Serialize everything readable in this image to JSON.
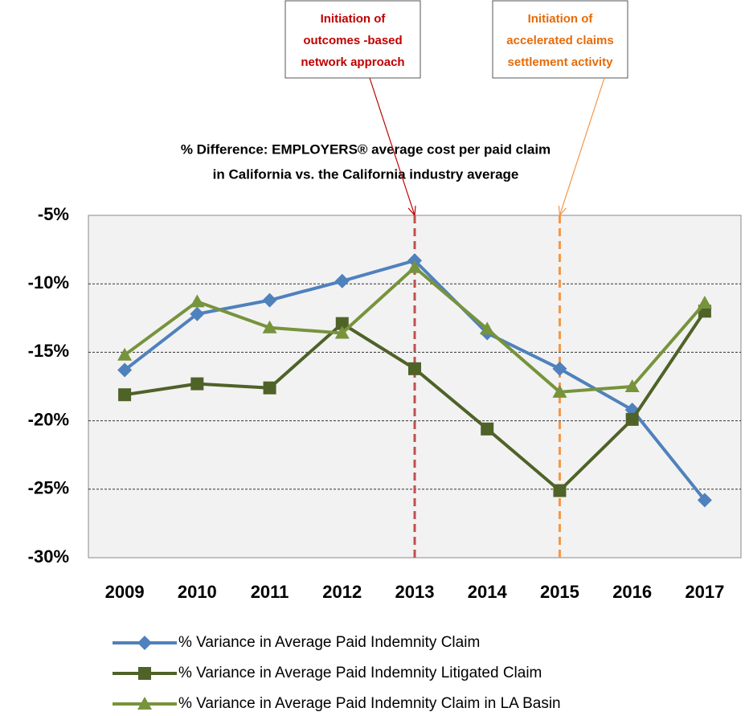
{
  "chart_data": {
    "type": "line",
    "title": [
      "% Difference:  EMPLOYERS® average cost per paid claim",
      "in California vs. the California industry average"
    ],
    "categories": [
      "2009",
      "2010",
      "2011",
      "2012",
      "2013",
      "2014",
      "2015",
      "2016",
      "2017"
    ],
    "series": [
      {
        "name": "% Variance in Average Paid Indemnity Claim",
        "color": "#4f81bd",
        "marker": "diamond",
        "values": [
          -16.3,
          -12.2,
          -11.2,
          -9.8,
          -8.3,
          -13.6,
          -16.2,
          -19.2,
          -25.8
        ]
      },
      {
        "name": "% Variance in Average Paid Indemnity Litigated Claim",
        "color": "#4f6228",
        "marker": "square",
        "values": [
          -18.1,
          -17.3,
          -17.6,
          -12.9,
          -16.2,
          -20.6,
          -25.1,
          -19.9,
          -12.0
        ]
      },
      {
        "name": "% Variance in Average Paid Indemnity Claim in LA Basin",
        "color": "#77933c",
        "marker": "triangle",
        "values": [
          -15.2,
          -11.3,
          -13.2,
          -13.6,
          -8.8,
          -13.3,
          -17.9,
          -17.5,
          -11.4
        ]
      }
    ],
    "ylim": [
      -30,
      -5
    ],
    "yticks": [
      {
        "value": -30,
        "label": "-30%"
      },
      {
        "value": -25,
        "label": "-25%"
      },
      {
        "value": -20,
        "label": "-20%"
      },
      {
        "value": -15,
        "label": "-15%"
      },
      {
        "value": -10,
        "label": "-10%"
      },
      {
        "value": -5,
        "label": "-5%"
      }
    ],
    "grid": true,
    "legend": "bottom",
    "annotations": [
      {
        "lines": [
          "Initiation of",
          "outcomes -based",
          "network approach"
        ],
        "at": "2013",
        "color": "#c00000",
        "line_color": "#c0504d"
      },
      {
        "lines": [
          "Initiation of",
          "accelerated claims",
          "settlement activity"
        ],
        "at": "2015",
        "color": "#e46c0a",
        "line_color": "#f79646"
      }
    ]
  }
}
